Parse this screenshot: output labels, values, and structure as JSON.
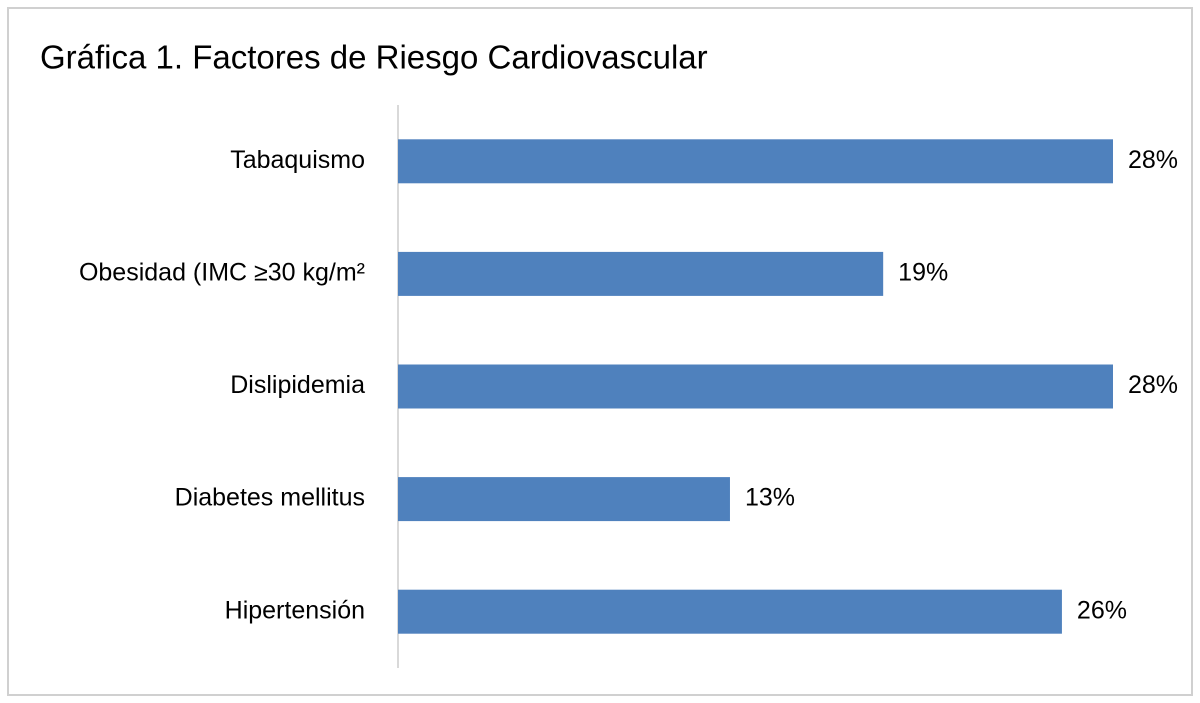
{
  "chart_data": {
    "type": "bar",
    "orientation": "horizontal",
    "title": "Gráfica 1. Factores de Riesgo Cardiovascular",
    "categories": [
      "Tabaquismo",
      "Obesidad (IMC ≥30 kg/m²",
      "Dislipidemia",
      "Diabetes mellitus",
      "Hipertensión"
    ],
    "values": [
      28,
      19,
      28,
      13,
      26
    ],
    "value_labels": [
      "28%",
      "19%",
      "28%",
      "13%",
      "26%"
    ],
    "color": "#4f81bd",
    "grid": false
  }
}
